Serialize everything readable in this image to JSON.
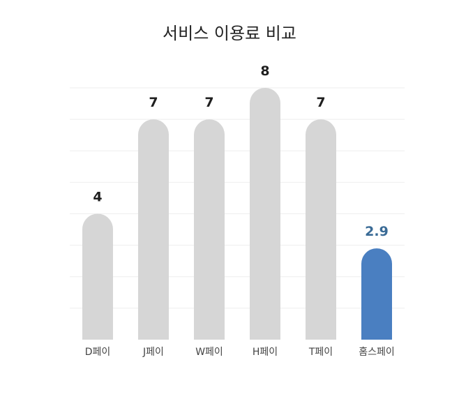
{
  "chart_data": {
    "type": "bar",
    "title": "서비스 이용료 비교",
    "categories": [
      "D페이",
      "J페이",
      "W페이",
      "H페이",
      "T페이",
      "홈스페이"
    ],
    "values": [
      4,
      7,
      7,
      8,
      7,
      2.9
    ],
    "value_labels": [
      "4",
      "7",
      "7",
      "8",
      "7",
      "2.9"
    ],
    "ylim": [
      0,
      8
    ],
    "grid": true,
    "legend": "none",
    "colors": {
      "default_bar": "#d6d6d6",
      "highlight_bar": "#4a7fc1",
      "default_label": "#1f1f1f",
      "highlight_label": "#3a6b96"
    },
    "highlight_index": 5
  }
}
